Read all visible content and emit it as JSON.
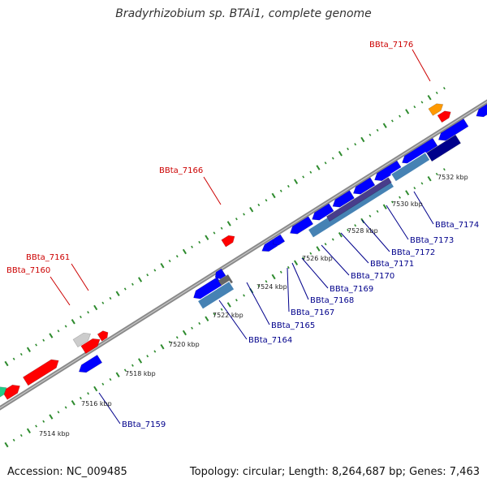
{
  "title": "Bradyrhizobium sp. BTAi1, complete genome",
  "footer": {
    "accession": "Accession: NC_009485",
    "topology": "Topology: circular; Length: 8,264,687 bp; Genes: 7,463"
  },
  "colors": {
    "backbone": "#8a8a8a",
    "tick": "#2e8b2e",
    "label_plus": "#cc0000",
    "label_minus": "#00008b",
    "gene_red": "#ff0000",
    "gene_blue": "#0000ff",
    "gene_orange": "#ff9900",
    "gene_gray": "#cccccc",
    "gene_dark_gray": "#666666",
    "gene_green": "#22cc88",
    "gene_steel": "#4682b4",
    "gene_navy": "#00008b",
    "gene_purple": "#483d8b"
  },
  "kbp_labels": [
    "7514 kbp",
    "7516 kbp",
    "7518 kbp",
    "7520 kbp",
    "7522 kbp",
    "7524 kbp",
    "7526 kbp",
    "7528 kbp",
    "7530 kbp",
    "7532 kbp"
  ],
  "gene_labels": [
    {
      "text": "BBta_7176",
      "strand": "plus"
    },
    {
      "text": "BBta_7166",
      "strand": "plus"
    },
    {
      "text": "BBta_7161",
      "strand": "plus"
    },
    {
      "text": "BBta_7160",
      "strand": "plus"
    },
    {
      "text": "BBta_7174",
      "strand": "minus"
    },
    {
      "text": "BBta_7173",
      "strand": "minus"
    },
    {
      "text": "BBta_7172",
      "strand": "minus"
    },
    {
      "text": "BBta_7171",
      "strand": "minus"
    },
    {
      "text": "BBta_7170",
      "strand": "minus"
    },
    {
      "text": "BBta_7169",
      "strand": "minus"
    },
    {
      "text": "BBta_7168",
      "strand": "minus"
    },
    {
      "text": "BBta_7167",
      "strand": "minus"
    },
    {
      "text": "BBta_7165",
      "strand": "minus"
    },
    {
      "text": "BBta_7164",
      "strand": "minus"
    },
    {
      "text": "BBta_7159",
      "strand": "minus"
    }
  ]
}
